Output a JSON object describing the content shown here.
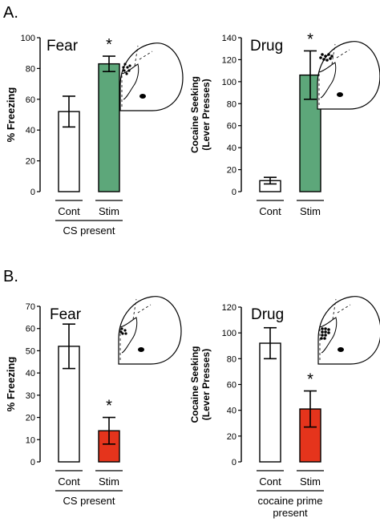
{
  "colors": {
    "stim_fear_drug_A": "#5da77a",
    "stim_fear_drug_B": "#e5341c",
    "cont": "#ffffff",
    "ink": "#000000"
  },
  "chart_data": [
    {
      "type": "bar",
      "section": "A.",
      "title": "Fear",
      "categories": [
        "Cont",
        "Stim"
      ],
      "values": [
        52,
        83
      ],
      "errors": [
        10,
        5
      ],
      "significant": [
        false,
        true
      ],
      "marker": "*",
      "ylabel": "% Freezing",
      "ylim": [
        0,
        100
      ],
      "yticks": [
        0,
        20,
        40,
        60,
        80,
        100
      ],
      "group_label": [
        "CS present"
      ],
      "bar_colors": [
        "#ffffff",
        "#5da77a"
      ]
    },
    {
      "type": "bar",
      "section": "",
      "title": "Drug",
      "categories": [
        "Cont",
        "Stim"
      ],
      "values": [
        10,
        106
      ],
      "errors": [
        3,
        22
      ],
      "significant": [
        false,
        true
      ],
      "marker": "*",
      "ylabel": "Cocaine Seeking",
      "ylabel2": "(Lever Presses)",
      "ylim": [
        0,
        140
      ],
      "yticks": [
        0,
        20,
        40,
        60,
        80,
        100,
        120,
        140
      ],
      "group_label": [],
      "bar_colors": [
        "#ffffff",
        "#5da77a"
      ]
    },
    {
      "type": "bar",
      "section": "B.",
      "title": "Fear",
      "categories": [
        "Cont",
        "Stim"
      ],
      "values": [
        52,
        14
      ],
      "errors": [
        10,
        6
      ],
      "significant": [
        false,
        true
      ],
      "marker": "*",
      "ylabel": "% Freezing",
      "ylim": [
        0,
        70
      ],
      "yticks": [
        0,
        10,
        20,
        30,
        40,
        50,
        60,
        70
      ],
      "group_label": [
        "CS present"
      ],
      "bar_colors": [
        "#ffffff",
        "#e5341c"
      ]
    },
    {
      "type": "bar",
      "section": "",
      "title": "Drug",
      "categories": [
        "Cont",
        "Stim"
      ],
      "values": [
        92,
        41
      ],
      "errors": [
        12,
        14
      ],
      "significant": [
        false,
        true
      ],
      "marker": "*",
      "ylabel": "Cocaine Seeking",
      "ylabel2": "(Lever Presses)",
      "ylim": [
        0,
        120
      ],
      "yticks": [
        0,
        20,
        40,
        60,
        80,
        100,
        120
      ],
      "group_label": [
        "cocaine prime",
        "present"
      ],
      "bar_colors": [
        "#ffffff",
        "#e5341c"
      ]
    }
  ]
}
